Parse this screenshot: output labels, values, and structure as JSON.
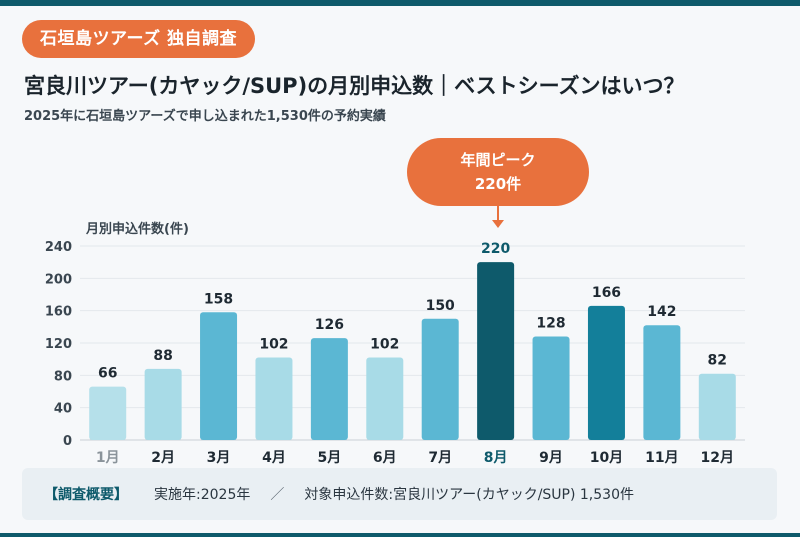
{
  "header": {
    "badge": "石垣島ツアーズ 独自調査",
    "title": "宮良川ツアー(カヤック/SUP)の月別申込数｜ベストシーズンはいつ？",
    "subtitle": "2025年に石垣島ツアーズで申し込まれた1,530件の予約実績"
  },
  "callout": {
    "label": "年間ピーク",
    "value": "220件"
  },
  "chart_data": {
    "type": "bar",
    "ylabel": "月別申込件数(件)",
    "ylim": [
      0,
      240
    ],
    "yticks": [
      "0",
      "40",
      "80",
      "120",
      "160",
      "200",
      "240"
    ],
    "categories": [
      "1月",
      "2月",
      "3月",
      "4月",
      "5月",
      "6月",
      "7月",
      "8月",
      "9月",
      "10月",
      "11月",
      "12月"
    ],
    "values": [
      66,
      88,
      158,
      102,
      126,
      102,
      150,
      220,
      128,
      166,
      142,
      82
    ],
    "highlight_index": 7,
    "grid": true,
    "bar_colors": [
      "#b5e0ea",
      "#a8dbe7",
      "#5bb7d3",
      "#a8dbe7",
      "#5bb7d3",
      "#a8dbe7",
      "#5bb7d3",
      "#0e5a6b",
      "#5bb7d3",
      "#137f9a",
      "#5bb7d3",
      "#a8dbe7"
    ],
    "label_colors": {
      "normal": "#1f2a33",
      "highlight": "#0e5a6b",
      "muted": "#8a939a"
    }
  },
  "summary": {
    "label": "【調査概要】",
    "year": "実施年:2025年",
    "separator": "／",
    "target": "対象申込件数:宮良川ツアー(カヤック/SUP) 1,530件"
  },
  "colors": {
    "accent": "#e8713d",
    "primary": "#0e5a6b"
  }
}
